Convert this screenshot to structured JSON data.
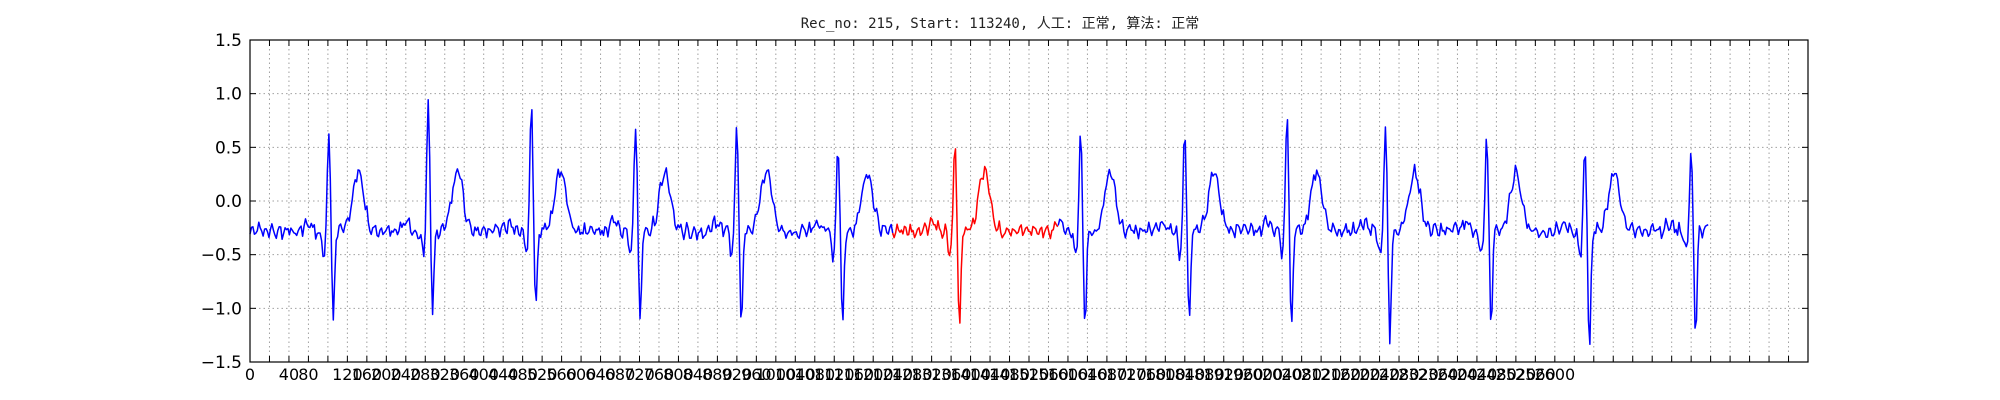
{
  "chart_data": {
    "type": "line",
    "title": "Rec_no: 215, Start: 113240, 人工: 正常, 算法: 正常",
    "xlabel": "",
    "ylabel": "",
    "xlim": [
      0,
      1600
    ],
    "ylim": [
      -1.5,
      1.5
    ],
    "grid": true,
    "yticks": [
      -1.5,
      -1.0,
      -0.5,
      0.0,
      0.5,
      1.0,
      1.5
    ],
    "ytick_labels": [
      "−1.5",
      "−1.0",
      "−0.5",
      "0.0",
      "0.5",
      "1.0",
      "1.5"
    ],
    "xticks": [
      0,
      20,
      40,
      60,
      80,
      100,
      120,
      140,
      160,
      180,
      200,
      220,
      240,
      260,
      280,
      300,
      320,
      340,
      360,
      380,
      400,
      420,
      440,
      460,
      480,
      500,
      520,
      540,
      560,
      580,
      600,
      620,
      640,
      660,
      680,
      700,
      720,
      740,
      760,
      780,
      800,
      820,
      840,
      860,
      880,
      900,
      920,
      940,
      960,
      980,
      1000,
      1020,
      1040,
      1060,
      1080,
      1100,
      1120,
      1140,
      1160,
      1180,
      1200,
      1220,
      1240,
      1260,
      1280,
      1300,
      1320,
      1340,
      1360,
      1380,
      1400,
      1420,
      1440,
      1460,
      1480,
      1500,
      1520,
      1540,
      1560,
      1580,
      1600
    ],
    "xtick_labels": [
      "0",
      "",
      "40",
      "80",
      "",
      "120",
      "160",
      "200",
      "240",
      "280",
      "320",
      "360",
      "400",
      "440",
      "480",
      "520",
      "560",
      "600",
      "640",
      "680",
      "720",
      "760",
      "800",
      "840",
      "880",
      "920",
      "960",
      "1000",
      "1040",
      "1080",
      "1120",
      "1160",
      "1200",
      "1240",
      "1280",
      "1320",
      "1360",
      "1400",
      "1440",
      "1480",
      "1520",
      "1560",
      "1600",
      "1640",
      "1680",
      "1720",
      "1760",
      "1800",
      "1840",
      "1880",
      "1920",
      "1960",
      "2000",
      "2040",
      "2080",
      "2120",
      "2160",
      "2200",
      "2240",
      "2280",
      "2320",
      "2360",
      "2400",
      "2440",
      "2480",
      "2520",
      "2560",
      "2600",
      "",
      "",
      "",
      "",
      "",
      "",
      "",
      "",
      "",
      "",
      "",
      "",
      ""
    ],
    "beats": [
      {
        "x": 81,
        "r": 0.97,
        "s": -0.85
      },
      {
        "x": 183,
        "r": 1.15,
        "s": -0.75
      },
      {
        "x": 289,
        "r": 1.18,
        "s": -0.75
      },
      {
        "x": 396,
        "r": 1.03,
        "s": -0.87
      },
      {
        "x": 500,
        "r": 1.03,
        "s": -0.92
      },
      {
        "x": 604,
        "r": 0.8,
        "s": -0.95
      },
      {
        "x": 724,
        "r": 0.86,
        "s": -0.95
      },
      {
        "x": 853,
        "r": 0.92,
        "s": -0.9
      },
      {
        "x": 960,
        "r": 0.92,
        "s": -0.92
      },
      {
        "x": 1065,
        "r": 1.1,
        "s": -0.93
      },
      {
        "x": 1166,
        "r": 1.0,
        "s": -1.0
      },
      {
        "x": 1270,
        "r": 0.9,
        "s": -0.92
      },
      {
        "x": 1371,
        "r": 0.73,
        "s": -1.13
      },
      {
        "x": 1480,
        "r": 0.75,
        "s": -0.98
      }
    ],
    "series": [
      {
        "color": "#0000ff",
        "x_range": [
          0,
          660
        ],
        "part": "before"
      },
      {
        "color": "#ff0000",
        "x_range": [
          660,
          830
        ],
        "part": "highlight"
      },
      {
        "color": "#0000ff",
        "x_range": [
          830,
          1498
        ],
        "part": "after"
      }
    ],
    "colors": {
      "signal": "#0000ff",
      "highlight": "#ff0000",
      "grid": "#a0a0a0",
      "axes": "#000000"
    }
  }
}
